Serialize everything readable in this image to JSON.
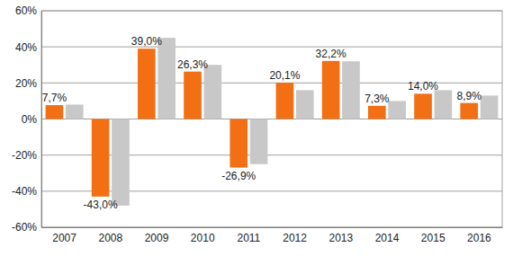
{
  "chart_data": {
    "type": "bar",
    "categories": [
      "2007",
      "2008",
      "2009",
      "2010",
      "2011",
      "2012",
      "2013",
      "2014",
      "2015",
      "2016"
    ],
    "series": [
      {
        "color": "#f36f13",
        "data_labels": true,
        "values": [
          7.7,
          -43.0,
          39.0,
          26.3,
          -26.9,
          20.1,
          32.2,
          7.3,
          14.0,
          8.9
        ],
        "value_labels": [
          "7,7%",
          "-43,0%",
          "39,0%",
          "26,3%",
          "-26,9%",
          "20,1%",
          "32,2%",
          "7,3%",
          "14,0%",
          "8,9%"
        ]
      },
      {
        "color": "#c8c8c8",
        "data_labels": false,
        "values": [
          8,
          -48,
          45,
          30,
          -25,
          16,
          32,
          10,
          16,
          13
        ]
      }
    ],
    "ylim": [
      -60,
      60
    ],
    "yticks": [
      {
        "value": -60,
        "label": "-60%"
      },
      {
        "value": -40,
        "label": "-40%"
      },
      {
        "value": -20,
        "label": "-20%"
      },
      {
        "value": 0,
        "label": "0%"
      },
      {
        "value": 20,
        "label": "20%"
      },
      {
        "value": 40,
        "label": "40%"
      },
      {
        "value": 60,
        "label": "60%"
      }
    ],
    "grid": true
  }
}
